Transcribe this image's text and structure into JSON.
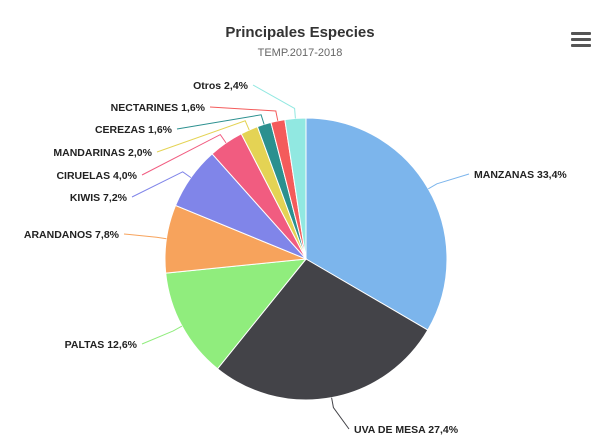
{
  "toolbar": {
    "menu_icon": "hamburger-menu-icon"
  },
  "chart_data": {
    "type": "pie",
    "title": "Principales Especies",
    "subtitle": "TEMP.2017-2018",
    "slices": [
      {
        "label": "MANZANAS 33,4%",
        "value": 33.4,
        "color": "#7cb5ec"
      },
      {
        "label": "UVA DE MESA 27,4%",
        "value": 27.4,
        "color": "#434348"
      },
      {
        "label": "PALTAS 12,6%",
        "value": 12.6,
        "color": "#90ed7d"
      },
      {
        "label": "ARANDANOS 7,8%",
        "value": 7.8,
        "color": "#f7a35c"
      },
      {
        "label": "KIWIS 7,2%",
        "value": 7.2,
        "color": "#8085e9"
      },
      {
        "label": "CIRUELAS 4,0%",
        "value": 4.0,
        "color": "#f15c80"
      },
      {
        "label": "MANDARINAS 2,0%",
        "value": 2.0,
        "color": "#e4d354"
      },
      {
        "label": "CEREZAS 1,6%",
        "value": 1.6,
        "color": "#2b908f"
      },
      {
        "label": "NECTARINES 1,6%",
        "value": 1.6,
        "color": "#f45b5b"
      },
      {
        "label": "Otros 2,4%",
        "value": 2.4,
        "color": "#91e8e1"
      }
    ]
  }
}
